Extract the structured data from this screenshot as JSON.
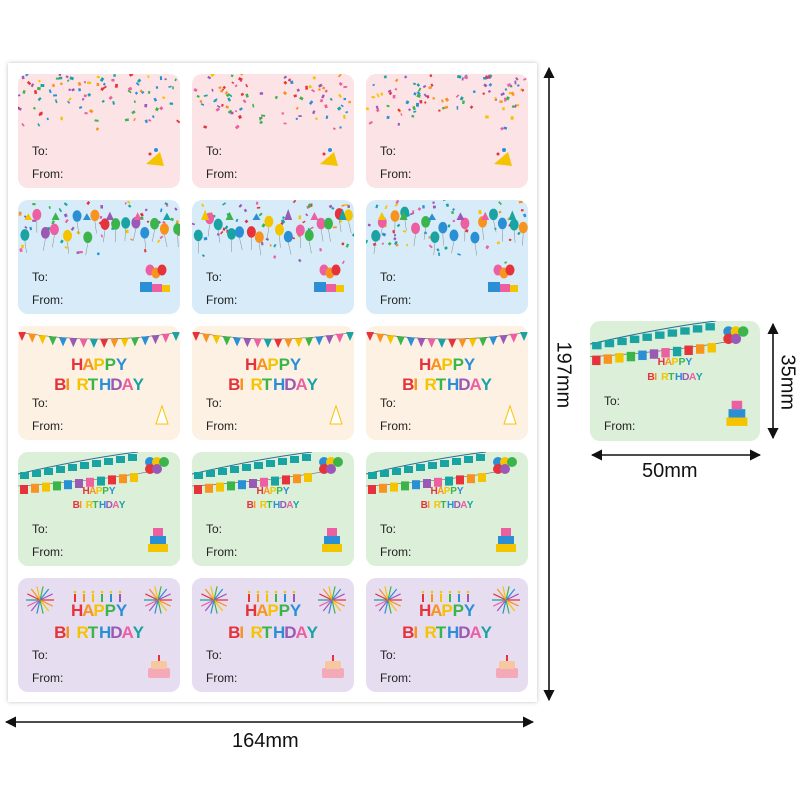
{
  "sheet": {
    "width_label": "164mm",
    "height_label": "197mm"
  },
  "single_label": {
    "width_label": "50mm",
    "height_label": "35mm"
  },
  "field_labels": {
    "to": "To:",
    "from": "From:"
  },
  "themes": [
    {
      "name": "confetti-pink",
      "bg": "#fbe3e6",
      "headline": ""
    },
    {
      "name": "balloons-blue",
      "bg": "#d7ecf8",
      "headline": ""
    },
    {
      "name": "bunting-cream",
      "bg": "#fdf1e3",
      "headline_line1": "HAPPY",
      "headline_line2": "BIRTHDAY"
    },
    {
      "name": "bunting-green",
      "bg": "#dcefd9",
      "headline_line1": "HAPPY",
      "headline_line2": "BIRTHDAY"
    },
    {
      "name": "fireworks-lavender",
      "bg": "#e6ddf1",
      "headline_line1": "HAPPY",
      "headline_line2": "BIRTHDAY"
    }
  ],
  "grid": {
    "rows": 5,
    "columns": 3
  },
  "colors": {
    "red": "#e5323b",
    "orange": "#f7931e",
    "yellow": "#f5c400",
    "green": "#3bb54a",
    "blue": "#2b8fd6",
    "purple": "#9b59b6",
    "pink": "#ec5fa0",
    "teal": "#1aa3a3"
  }
}
